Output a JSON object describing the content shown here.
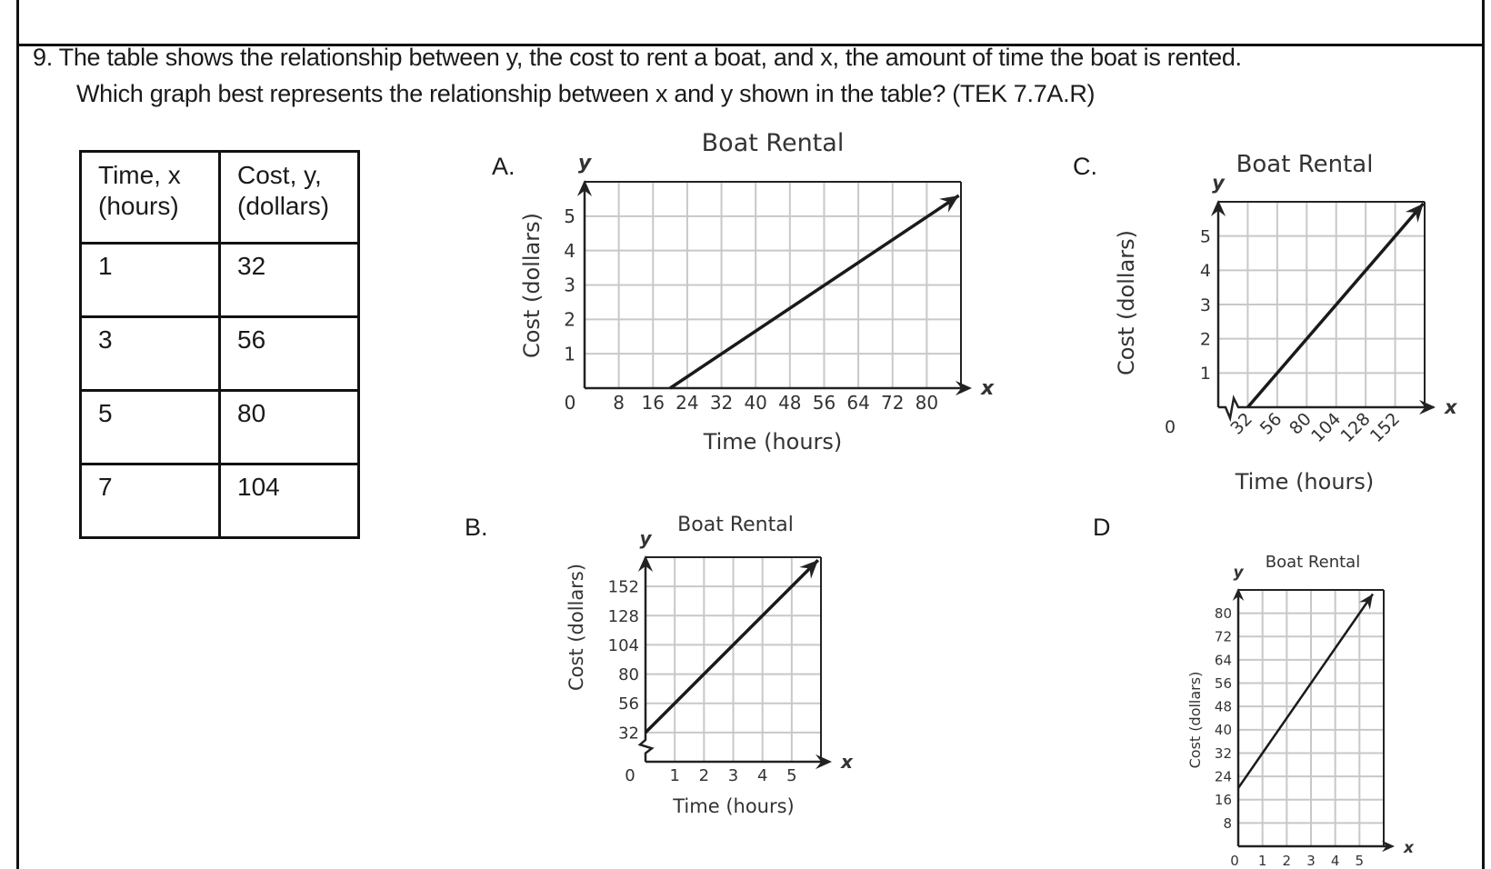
{
  "question": {
    "line1": "9. The table shows the relationship between y, the cost to rent a boat, and x, the amount of time the boat is rented.",
    "line2": "Which graph best represents the relationship between x and y shown in the table? (TEK 7.7A.R)"
  },
  "table": {
    "headers": [
      [
        "Time, x",
        "(hours)"
      ],
      [
        "Cost, y,",
        "(dollars)"
      ]
    ],
    "rows": [
      [
        "1",
        "32"
      ],
      [
        "3",
        "56"
      ],
      [
        "5",
        "80"
      ],
      [
        "7",
        "104"
      ]
    ]
  },
  "options": [
    "A.",
    "B.",
    "C.",
    "D"
  ],
  "chart_data": [
    {
      "option": "A.",
      "type": "line",
      "title": "Boat Rental",
      "xlabel": "Time (hours)",
      "ylabel": "Cost (dollars)",
      "x_axis_letter": "x",
      "y_axis_letter": "y",
      "origin_label": "0",
      "xlim": [
        0,
        88
      ],
      "ylim": [
        0,
        6
      ],
      "axis_break": "none",
      "grid": true,
      "xticks": [
        8,
        16,
        24,
        32,
        40,
        48,
        56,
        64,
        72,
        80
      ],
      "yticks": [
        1,
        2,
        3,
        4,
        5
      ],
      "line": {
        "from": [
          20,
          0
        ],
        "to": [
          87.5,
          5.6
        ],
        "arrow": true
      }
    },
    {
      "option": "B.",
      "type": "line",
      "title": "Boat Rental",
      "xlabel": "Time (hours)",
      "ylabel": "Cost (dollars)",
      "x_axis_letter": "x",
      "y_axis_letter": "y",
      "origin_label": "0",
      "xlim": [
        0,
        6
      ],
      "ylim": [
        8,
        176
      ],
      "axis_break": "y",
      "grid": true,
      "xticks": [
        1,
        2,
        3,
        4,
        5
      ],
      "yticks": [
        32,
        56,
        80,
        104,
        128,
        152
      ],
      "line": {
        "from": [
          0,
          32
        ],
        "to": [
          5.9,
          173.6
        ],
        "arrow": true
      }
    },
    {
      "option": "C.",
      "type": "line",
      "title": "Boat Rental",
      "xlabel": "Time (hours)",
      "ylabel": "Cost (dollars)",
      "x_axis_letter": "x",
      "y_axis_letter": "y",
      "origin_label": "0",
      "xlim": [
        8,
        176
      ],
      "ylim": [
        0,
        6
      ],
      "axis_break": "x",
      "grid": true,
      "xticks": [
        32,
        56,
        80,
        104,
        128,
        152
      ],
      "xtick_rotation": -45,
      "yticks": [
        1,
        2,
        3,
        4,
        5
      ],
      "line": {
        "from": [
          32,
          0
        ],
        "to": [
          175,
          5.95
        ],
        "arrow": true
      }
    },
    {
      "option": "D",
      "type": "line",
      "title": "Boat Rental",
      "xlabel": "",
      "ylabel": "Cost (dollars)",
      "x_axis_letter": "x",
      "y_axis_letter": "y",
      "origin_label": "0",
      "xlim": [
        0,
        6
      ],
      "ylim": [
        0,
        88
      ],
      "axis_break": "none",
      "grid": true,
      "xticks": [
        1,
        2,
        3,
        4,
        5
      ],
      "yticks": [
        8,
        16,
        24,
        32,
        40,
        48,
        56,
        64,
        72,
        80
      ],
      "line": {
        "from": [
          0,
          20
        ],
        "to": [
          5.55,
          86.6
        ],
        "arrow": true
      }
    }
  ],
  "colors": {
    "grid": "#c8c8c8",
    "axis": "#222222",
    "line": "#1a1a1a",
    "border": "#111111"
  }
}
